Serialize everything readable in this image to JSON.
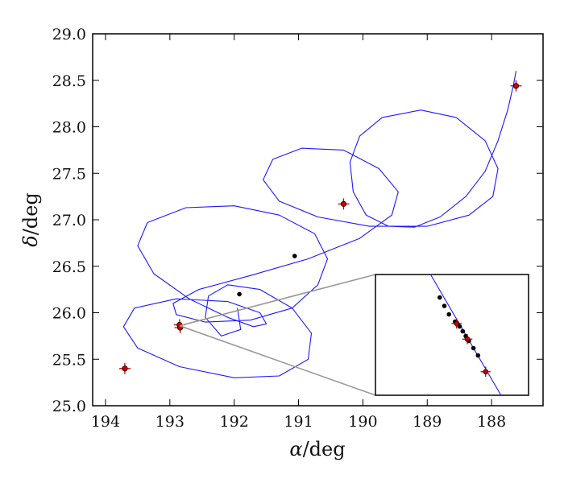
{
  "chart_data": {
    "type": "line",
    "title": "",
    "xlabel_symbol": "α",
    "xlabel_unit": "/deg",
    "ylabel_symbol": "δ",
    "ylabel_unit": "/deg",
    "xlim": [
      194.2,
      187.2
    ],
    "ylim": [
      25.0,
      29.0
    ],
    "x_reversed": true,
    "grid": false,
    "x_ticks": [
      {
        "value": 194,
        "label": "194"
      },
      {
        "value": 193,
        "label": "193"
      },
      {
        "value": 192,
        "label": "192"
      },
      {
        "value": 191,
        "label": "191"
      },
      {
        "value": 190,
        "label": "190"
      },
      {
        "value": 189,
        "label": "189"
      },
      {
        "value": 188,
        "label": "188"
      }
    ],
    "y_ticks": [
      {
        "value": 25.0,
        "label": "25.0"
      },
      {
        "value": 25.5,
        "label": "25.5"
      },
      {
        "value": 26.0,
        "label": "26.0"
      },
      {
        "value": 26.5,
        "label": "26.5"
      },
      {
        "value": 27.0,
        "label": "27.0"
      },
      {
        "value": 27.5,
        "label": "27.5"
      },
      {
        "value": 28.0,
        "label": "28.0"
      },
      {
        "value": 28.5,
        "label": "28.5"
      },
      {
        "value": 29.0,
        "label": "29.0"
      }
    ],
    "trajectory": {
      "color": "#1a1aff",
      "x": [
        187.62,
        187.66,
        187.75,
        187.9,
        188.1,
        188.4,
        188.8,
        189.2,
        189.6,
        189.95,
        190.15,
        190.2,
        190.05,
        189.7,
        189.1,
        188.55,
        188.1,
        187.9,
        187.98,
        188.35,
        189.0,
        189.9,
        190.7,
        191.3,
        191.55,
        191.4,
        190.95,
        190.3,
        189.75,
        189.45,
        189.55,
        190.05,
        190.85,
        191.75,
        192.55,
        192.95,
        192.9,
        192.45,
        191.75,
        191.1,
        190.7,
        190.55,
        190.75,
        191.3,
        192.0,
        192.75,
        193.35,
        193.5,
        193.25,
        192.7,
        192.1,
        191.7,
        191.5,
        191.6,
        192.1,
        192.9,
        193.55,
        193.72,
        193.5,
        192.85,
        192.0,
        191.3,
        190.85,
        190.8,
        191.1,
        191.6,
        192.1,
        192.4,
        192.45,
        192.2,
        191.9,
        191.95
      ],
      "y": [
        28.6,
        28.45,
        28.18,
        27.85,
        27.52,
        27.25,
        27.03,
        26.92,
        26.93,
        27.05,
        27.3,
        27.62,
        27.9,
        28.1,
        28.18,
        28.1,
        27.85,
        27.55,
        27.25,
        27.05,
        26.93,
        26.93,
        27.03,
        27.2,
        27.43,
        27.65,
        27.77,
        27.75,
        27.55,
        27.3,
        27.05,
        26.8,
        26.58,
        26.4,
        26.25,
        26.1,
        25.98,
        25.9,
        25.92,
        26.05,
        26.3,
        26.58,
        26.85,
        27.05,
        27.15,
        27.13,
        26.97,
        26.72,
        26.42,
        26.15,
        25.95,
        25.85,
        25.88,
        26.0,
        26.12,
        26.15,
        26.05,
        25.85,
        25.62,
        25.42,
        25.3,
        25.32,
        25.5,
        25.78,
        26.05,
        26.25,
        26.3,
        26.18,
        25.95,
        25.75,
        25.82,
        26.05
      ]
    },
    "observations": [
      {
        "x": 193.7,
        "y": 25.4,
        "marker": "red-star"
      },
      {
        "x": 192.85,
        "y": 25.87,
        "marker": "red-star"
      },
      {
        "x": 192.84,
        "y": 25.84,
        "marker": "red-star"
      },
      {
        "x": 191.92,
        "y": 26.2,
        "marker": "black-dot"
      },
      {
        "x": 191.06,
        "y": 26.61,
        "marker": "black-dot"
      },
      {
        "x": 190.3,
        "y": 27.17,
        "marker": "red-star"
      },
      {
        "x": 187.62,
        "y": 28.44,
        "marker": "red-star"
      }
    ],
    "inset": {
      "trajectory": {
        "x": [
          0.36,
          0.82
        ],
        "y": [
          1.0,
          0.0
        ]
      },
      "observations": [
        {
          "x": 0.42,
          "y": 0.81,
          "marker": "black-dot"
        },
        {
          "x": 0.45,
          "y": 0.74,
          "marker": "black-dot"
        },
        {
          "x": 0.48,
          "y": 0.67,
          "marker": "black-dot"
        },
        {
          "x": 0.52,
          "y": 0.61,
          "marker": "black-dot"
        },
        {
          "x": 0.53,
          "y": 0.595,
          "marker": "red-star"
        },
        {
          "x": 0.55,
          "y": 0.57,
          "marker": "black-dot"
        },
        {
          "x": 0.57,
          "y": 0.53,
          "marker": "black-dot"
        },
        {
          "x": 0.59,
          "y": 0.49,
          "marker": "black-dot"
        },
        {
          "x": 0.61,
          "y": 0.45,
          "marker": "black-dot"
        },
        {
          "x": 0.6,
          "y": 0.465,
          "marker": "red-star"
        },
        {
          "x": 0.64,
          "y": 0.39,
          "marker": "black-dot"
        },
        {
          "x": 0.67,
          "y": 0.33,
          "marker": "black-dot"
        },
        {
          "x": 0.72,
          "y": 0.195,
          "marker": "red-star"
        }
      ]
    },
    "zoom_source": {
      "x": 192.85,
      "y": 25.86
    }
  }
}
